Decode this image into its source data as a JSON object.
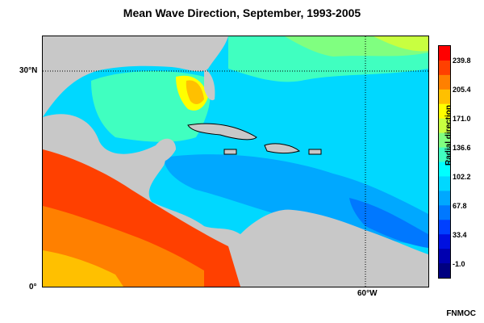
{
  "title": "Mean Wave Direction, September, 1993-2005",
  "map": {
    "lat_labels": [
      "30°N",
      "0°"
    ],
    "lon_labels": [
      "60°W"
    ],
    "gridline_color": "#000000",
    "land_color": "#c8c8c8"
  },
  "colorbar": {
    "label": "Radial direction",
    "ticks": [
      "239.8",
      "205.4",
      "171.0",
      "136.6",
      "102.2",
      "67.8",
      "33.4",
      "-1.0"
    ],
    "colors": [
      "#ff0000",
      "#ff4000",
      "#ff8000",
      "#ffc000",
      "#ffff00",
      "#c8ff40",
      "#80ff80",
      "#40ffc0",
      "#00ffff",
      "#00d8ff",
      "#00a8ff",
      "#0078ff",
      "#0040ff",
      "#0010e0",
      "#0000b0",
      "#000080"
    ]
  },
  "credit": "FNMOC"
}
